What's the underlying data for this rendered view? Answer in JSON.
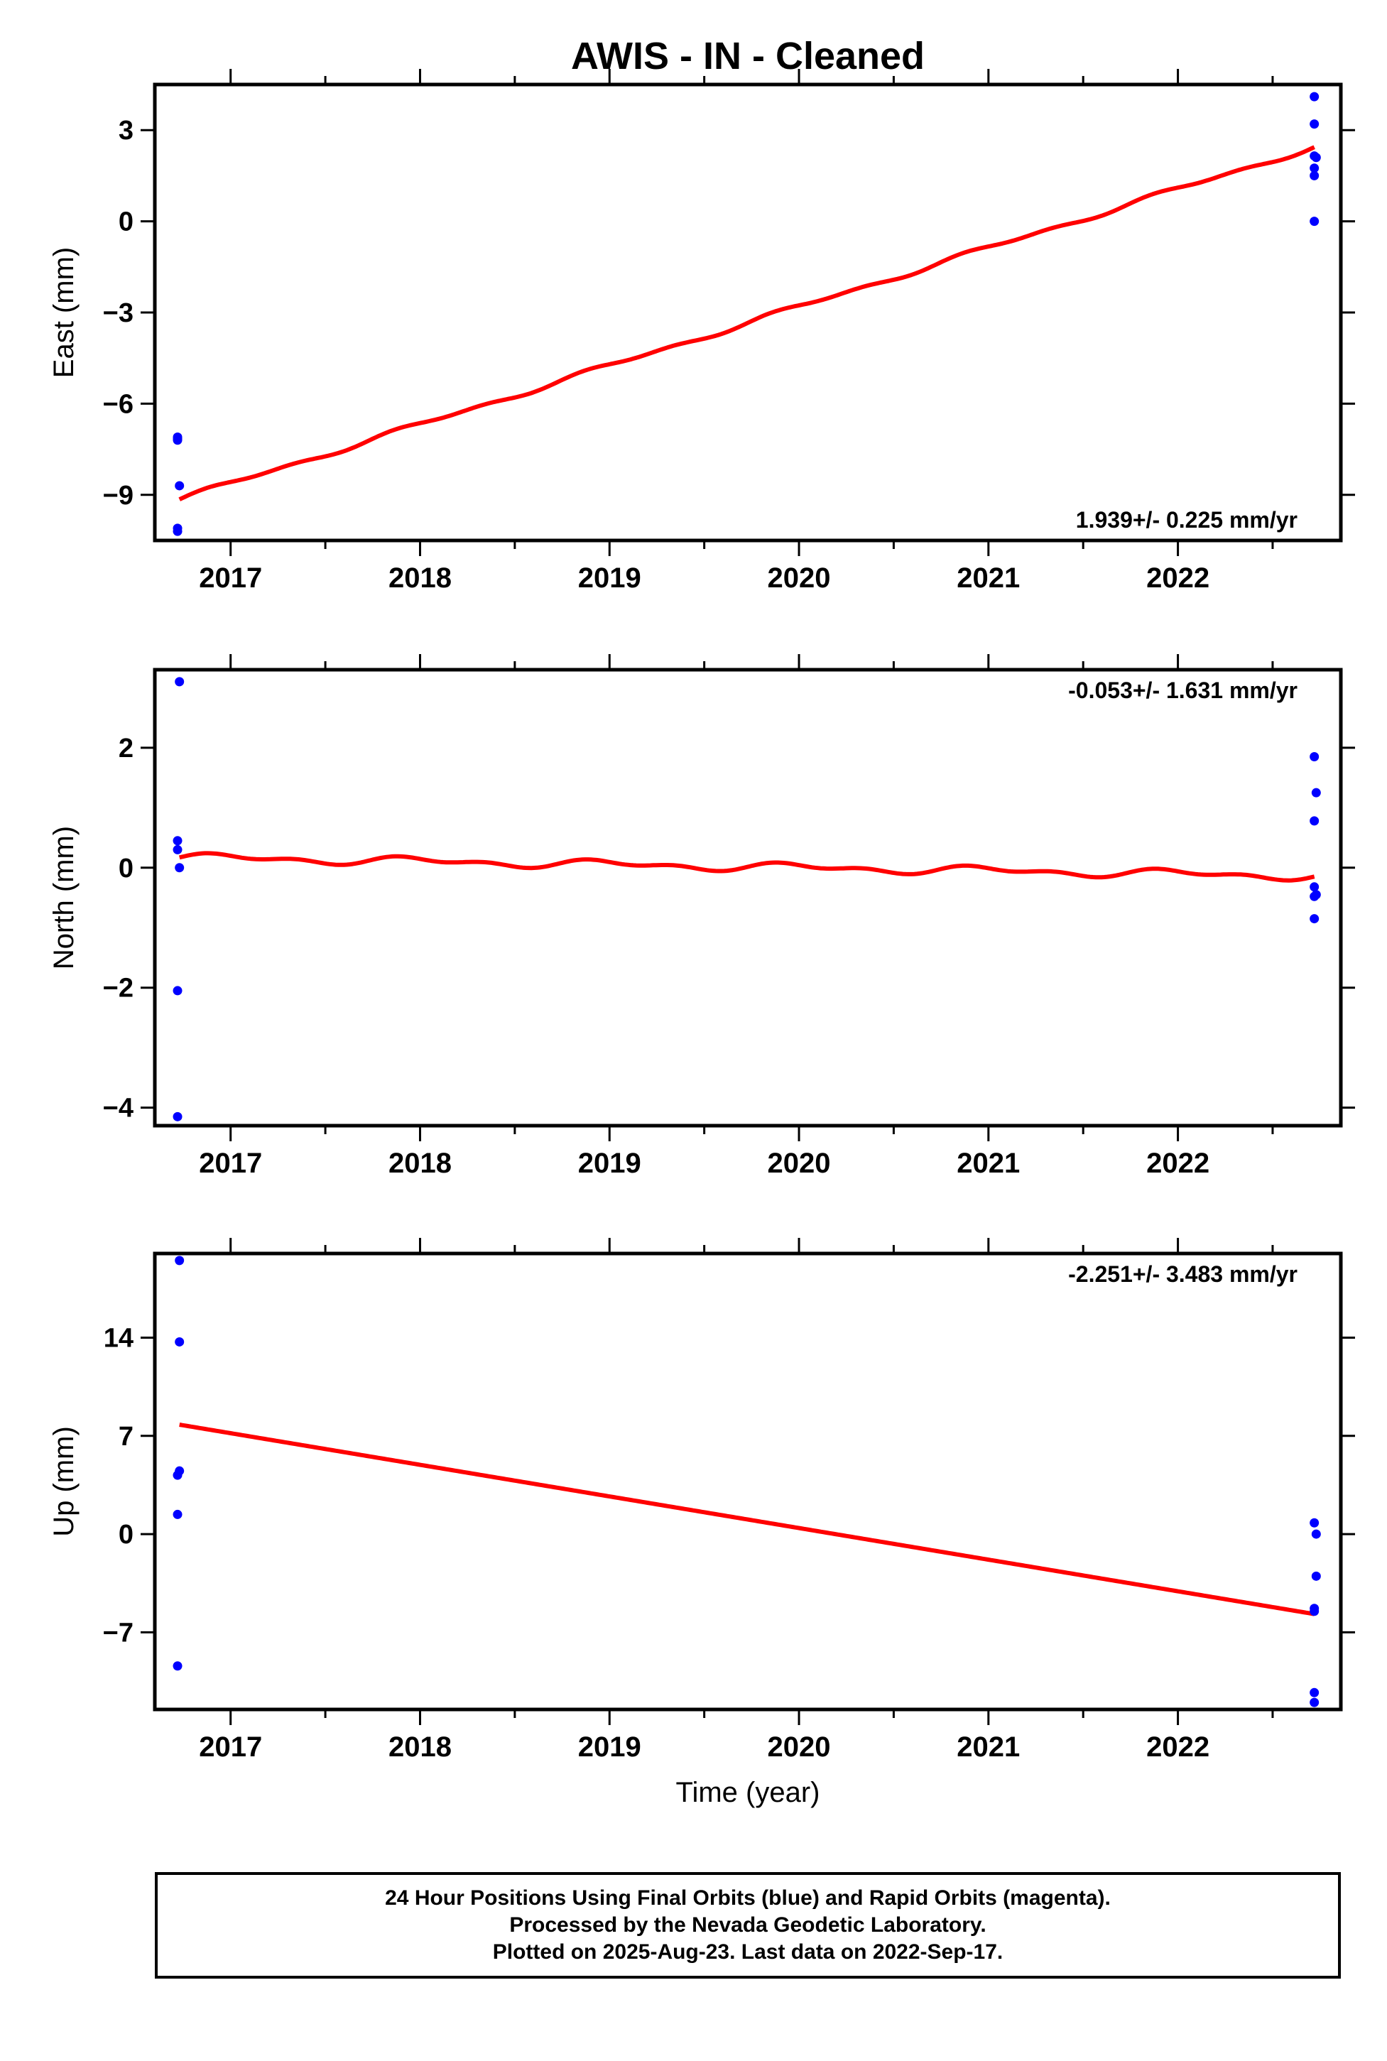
{
  "title": "AWIS  - IN - Cleaned",
  "chart_data": [
    {
      "type": "scatter",
      "ylabel": "East (mm)",
      "xlabel": "",
      "rate_label": "1.939+/- 0.225 mm/yr",
      "rate_position": "bottom-right",
      "xlim": [
        2016.6,
        2022.86
      ],
      "ylim": [
        -10.5,
        4.5
      ],
      "x_ticks": [
        2017,
        2018,
        2019,
        2020,
        2021,
        2022
      ],
      "x_tick_labels": [
        "2017",
        "2018",
        "2019",
        "2020",
        "2021",
        "2022"
      ],
      "y_ticks": [
        3,
        0,
        -3,
        -6,
        -9
      ],
      "y_tick_labels": [
        "3",
        "0",
        "−3",
        "−6",
        "−9"
      ],
      "series": [
        {
          "kind": "points",
          "color": "#0000ff",
          "points": [
            [
              2016.72,
              -7.1
            ],
            [
              2016.72,
              -7.2
            ],
            [
              2016.72,
              -7.15
            ],
            [
              2016.73,
              -8.7
            ],
            [
              2016.72,
              -10.1
            ],
            [
              2016.72,
              -10.2
            ],
            [
              2022.72,
              4.1
            ],
            [
              2022.72,
              3.2
            ],
            [
              2022.73,
              2.1
            ],
            [
              2022.72,
              2.15
            ],
            [
              2022.72,
              1.75
            ],
            [
              2022.72,
              1.5
            ],
            [
              2022.72,
              0.0
            ]
          ]
        },
        {
          "kind": "fit",
          "color": "#ff0000",
          "x_start": 2016.73,
          "x_end": 2022.72,
          "y_start": -9.15,
          "y_end": 2.45,
          "seasonal_amplitude": 0.08
        }
      ]
    },
    {
      "type": "scatter",
      "ylabel": "North (mm)",
      "xlabel": "",
      "rate_label": "-0.053+/- 1.631 mm/yr",
      "rate_position": "top-right",
      "xlim": [
        2016.6,
        2022.86
      ],
      "ylim": [
        -4.3,
        3.3
      ],
      "x_ticks": [
        2017,
        2018,
        2019,
        2020,
        2021,
        2022
      ],
      "x_tick_labels": [
        "2017",
        "2018",
        "2019",
        "2020",
        "2021",
        "2022"
      ],
      "y_ticks": [
        2,
        0,
        -2,
        -4
      ],
      "y_tick_labels": [
        "2",
        "0",
        "−2",
        "−4"
      ],
      "series": [
        {
          "kind": "points",
          "color": "#0000ff",
          "points": [
            [
              2016.73,
              3.1
            ],
            [
              2016.72,
              0.45
            ],
            [
              2016.72,
              0.3
            ],
            [
              2016.73,
              0.0
            ],
            [
              2016.72,
              -2.05
            ],
            [
              2016.72,
              -4.15
            ],
            [
              2022.72,
              1.85
            ],
            [
              2022.73,
              1.25
            ],
            [
              2022.72,
              0.78
            ],
            [
              2022.72,
              -0.32
            ],
            [
              2022.73,
              -0.45
            ],
            [
              2022.72,
              -0.48
            ],
            [
              2022.72,
              -0.85
            ]
          ]
        },
        {
          "kind": "fit",
          "color": "#ff0000",
          "x_start": 2016.73,
          "x_end": 2022.72,
          "y_start": 0.17,
          "y_end": -0.14,
          "seasonal_amplitude": 0.065
        }
      ]
    },
    {
      "type": "scatter",
      "ylabel": "Up (mm)",
      "xlabel": "Time (year)",
      "rate_label": "-2.251+/- 3.483 mm/yr",
      "rate_position": "top-right",
      "xlim": [
        2016.6,
        2022.86
      ],
      "ylim": [
        -12.5,
        20
      ],
      "x_ticks": [
        2017,
        2018,
        2019,
        2020,
        2021,
        2022
      ],
      "x_tick_labels": [
        "2017",
        "2018",
        "2019",
        "2020",
        "2021",
        "2022"
      ],
      "y_ticks": [
        14,
        7,
        0,
        -7
      ],
      "y_tick_labels": [
        "14",
        "7",
        "0",
        "−7"
      ],
      "series": [
        {
          "kind": "points",
          "color": "#0000ff",
          "points": [
            [
              2016.73,
              19.5
            ],
            [
              2016.73,
              13.7
            ],
            [
              2016.73,
              4.5
            ],
            [
              2016.72,
              4.2
            ],
            [
              2016.72,
              1.4
            ],
            [
              2016.72,
              -9.4
            ],
            [
              2022.72,
              0.8
            ],
            [
              2022.73,
              0.0
            ],
            [
              2022.73,
              -3.0
            ],
            [
              2022.72,
              -5.3
            ],
            [
              2022.72,
              -5.5
            ],
            [
              2022.72,
              -11.3
            ],
            [
              2022.72,
              -12.0
            ]
          ]
        },
        {
          "kind": "fit",
          "color": "#ff0000",
          "x_start": 2016.73,
          "x_end": 2022.72,
          "y_start": 7.8,
          "y_end": -5.7,
          "seasonal_amplitude": 0
        }
      ]
    }
  ],
  "footer": {
    "line1": "24 Hour Positions Using Final Orbits (blue) and Rapid Orbits (magenta).",
    "line2": "Processed by the Nevada Geodetic Laboratory.",
    "line3": "Plotted on 2025-Aug-23. Last data on 2022-Sep-17."
  }
}
